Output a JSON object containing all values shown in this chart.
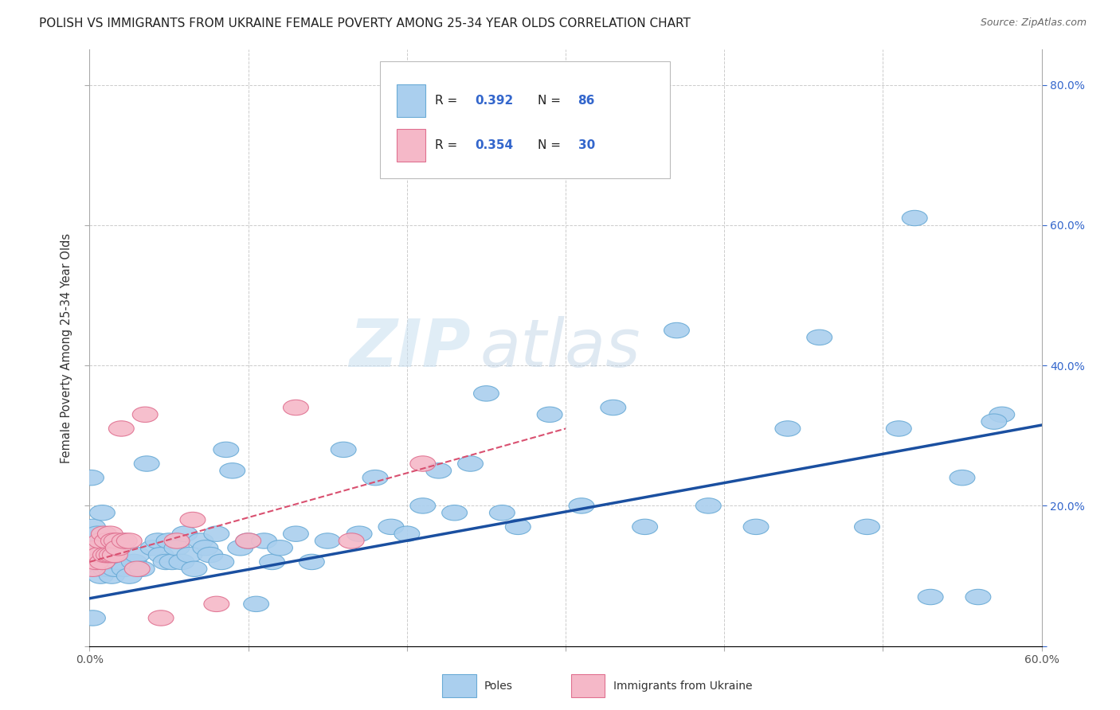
{
  "title": "POLISH VS IMMIGRANTS FROM UKRAINE FEMALE POVERTY AMONG 25-34 YEAR OLDS CORRELATION CHART",
  "source": "Source: ZipAtlas.com",
  "ylabel": "Female Poverty Among 25-34 Year Olds",
  "x_min": 0.0,
  "x_max": 0.6,
  "y_min": 0.0,
  "y_max": 0.85,
  "poles_color": "#aacfee",
  "poles_edge_color": "#6aabd6",
  "ukraine_color": "#f5b8c8",
  "ukraine_edge_color": "#e07090",
  "trend_poles_color": "#1a4fa0",
  "trend_ukraine_color": "#d95070",
  "poles_R": 0.392,
  "poles_N": 86,
  "ukraine_R": 0.354,
  "ukraine_N": 30,
  "watermark_zip": "ZIP",
  "watermark_atlas": "atlas",
  "poles_x": [
    0.001,
    0.002,
    0.003,
    0.004,
    0.005,
    0.005,
    0.006,
    0.007,
    0.007,
    0.008,
    0.008,
    0.009,
    0.01,
    0.01,
    0.011,
    0.012,
    0.013,
    0.014,
    0.015,
    0.016,
    0.017,
    0.018,
    0.02,
    0.022,
    0.025,
    0.028,
    0.03,
    0.033,
    0.036,
    0.04,
    0.043,
    0.045,
    0.048,
    0.05,
    0.052,
    0.055,
    0.058,
    0.06,
    0.063,
    0.066,
    0.07,
    0.073,
    0.076,
    0.08,
    0.083,
    0.086,
    0.09,
    0.095,
    0.1,
    0.105,
    0.11,
    0.115,
    0.12,
    0.13,
    0.14,
    0.15,
    0.16,
    0.17,
    0.18,
    0.19,
    0.2,
    0.21,
    0.22,
    0.23,
    0.24,
    0.25,
    0.26,
    0.27,
    0.29,
    0.31,
    0.33,
    0.35,
    0.37,
    0.39,
    0.42,
    0.44,
    0.46,
    0.49,
    0.51,
    0.53,
    0.55,
    0.56,
    0.575,
    0.002,
    0.52,
    0.57
  ],
  "poles_y": [
    0.24,
    0.17,
    0.14,
    0.13,
    0.12,
    0.16,
    0.11,
    0.14,
    0.1,
    0.19,
    0.13,
    0.13,
    0.11,
    0.14,
    0.12,
    0.13,
    0.11,
    0.1,
    0.12,
    0.11,
    0.13,
    0.12,
    0.15,
    0.11,
    0.1,
    0.12,
    0.13,
    0.11,
    0.26,
    0.14,
    0.15,
    0.13,
    0.12,
    0.15,
    0.12,
    0.14,
    0.12,
    0.16,
    0.13,
    0.11,
    0.15,
    0.14,
    0.13,
    0.16,
    0.12,
    0.28,
    0.25,
    0.14,
    0.15,
    0.06,
    0.15,
    0.12,
    0.14,
    0.16,
    0.12,
    0.15,
    0.28,
    0.16,
    0.24,
    0.17,
    0.16,
    0.2,
    0.25,
    0.19,
    0.26,
    0.36,
    0.19,
    0.17,
    0.33,
    0.2,
    0.34,
    0.17,
    0.45,
    0.2,
    0.17,
    0.31,
    0.44,
    0.17,
    0.31,
    0.07,
    0.24,
    0.07,
    0.33,
    0.04,
    0.61,
    0.32
  ],
  "ukraine_x": [
    0.002,
    0.003,
    0.004,
    0.005,
    0.006,
    0.007,
    0.008,
    0.009,
    0.01,
    0.011,
    0.012,
    0.013,
    0.014,
    0.015,
    0.016,
    0.017,
    0.018,
    0.02,
    0.022,
    0.025,
    0.03,
    0.035,
    0.045,
    0.055,
    0.065,
    0.08,
    0.1,
    0.13,
    0.165,
    0.21
  ],
  "ukraine_y": [
    0.11,
    0.13,
    0.12,
    0.14,
    0.13,
    0.15,
    0.12,
    0.16,
    0.13,
    0.15,
    0.13,
    0.16,
    0.13,
    0.15,
    0.13,
    0.15,
    0.14,
    0.31,
    0.15,
    0.15,
    0.11,
    0.33,
    0.04,
    0.15,
    0.18,
    0.06,
    0.15,
    0.34,
    0.15,
    0.26
  ],
  "trend_poles_x0": 0.0,
  "trend_poles_y0": 0.068,
  "trend_poles_x1": 0.6,
  "trend_poles_y1": 0.315,
  "trend_ukraine_x0": 0.0,
  "trend_ukraine_y0": 0.12,
  "trend_ukraine_x1": 0.3,
  "trend_ukraine_y1": 0.31
}
